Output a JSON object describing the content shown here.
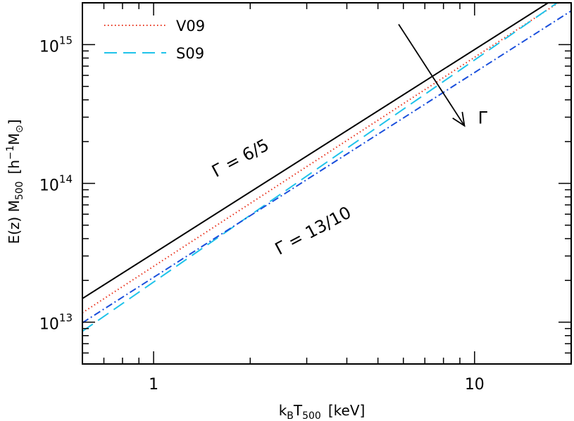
{
  "chart_data": {
    "type": "line",
    "x_scale": "log",
    "y_scale": "log",
    "xlim": [
      0.6,
      20
    ],
    "ylim": [
      5000000000000,
      2000000000000000
    ],
    "x_ticks": [
      {
        "value": 1,
        "label": "1"
      },
      {
        "value": 10,
        "label": "10"
      }
    ],
    "y_ticks": [
      {
        "value": 10000000000000,
        "base": "10",
        "exp": "13"
      },
      {
        "value": 100000000000000,
        "base": "10",
        "exp": "14"
      },
      {
        "value": 1000000000000000,
        "base": "10",
        "exp": "15"
      }
    ],
    "xlabel": {
      "k": "k",
      "k_sub": "B",
      "t": "T",
      "t_sub": "500",
      "unit": "[keV]"
    },
    "ylabel": {
      "pre": "E(z)  M",
      "m_sub": "500",
      "unit_open": "[h",
      "unit_exp": "−1",
      "unit_m": "M",
      "unit_sun": "⊙",
      "unit_close": "]"
    },
    "grid": false,
    "legend_position": "top-left",
    "series": [
      {
        "style": "solid-black",
        "x": [
          0.6,
          20
        ],
        "y": [
          14800000000000,
          2550000000000000
        ]
      },
      {
        "name": "V09",
        "style": "dotted-red",
        "x": [
          0.6,
          20
        ],
        "y": [
          11700000000000,
          2300000000000000
        ]
      },
      {
        "name": "S09",
        "style": "dashed-cyan",
        "x": [
          0.6,
          20
        ],
        "y": [
          8600000000000,
          2350000000000000
        ]
      },
      {
        "style": "dashdot-blue",
        "x": [
          0.6,
          20
        ],
        "y": [
          9900000000000,
          1750000000000000
        ]
      }
    ],
    "annotations": [
      {
        "text": "Γ = 6/5",
        "x": 1.9,
        "y": 140000000000000,
        "angle": -28
      },
      {
        "text": "Γ = 13/10",
        "x": 3.2,
        "y": 42000000000000,
        "angle": -28
      },
      {
        "text": "Γ",
        "x": 10.6,
        "y": 270000000000000,
        "angle": 0
      }
    ],
    "arrow": {
      "x_from": 5.8,
      "y_from": 1400000000000000,
      "x_to": 9.3,
      "y_to": 260000000000000
    }
  },
  "colors": {
    "axes": "#000000",
    "solid-black": "#000000",
    "dotted-red": "#e8301a",
    "dashed-cyan": "#1fc3ea",
    "dashdot-blue": "#1a4fdc"
  }
}
